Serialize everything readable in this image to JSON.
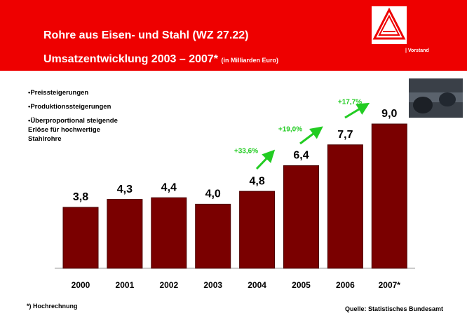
{
  "chart_data": {
    "type": "bar",
    "title": "Rohre aus Eisen- und Stahl (WZ 27.22)",
    "subtitle": "Umsatzentwicklung 2003 – 2007*",
    "unit_note": "(in Milliarden Euro)",
    "brand": "| Vorstand",
    "bullets": [
      "•Preissteigerungen",
      "•Produktionssteigerungen",
      "•Überproportional steigende Erlöse für hochwertige Stahlrohre"
    ],
    "categories": [
      "2000",
      "2001",
      "2002",
      "2003",
      "2004",
      "2005",
      "2006",
      "2007*"
    ],
    "values": [
      3.8,
      4.3,
      4.4,
      4.0,
      4.8,
      6.4,
      7.7,
      9.0
    ],
    "value_labels": [
      "3,8",
      "4,3",
      "4,4",
      "4,0",
      "4,8",
      "6,4",
      "7,7",
      "9,0"
    ],
    "color": "#7a0000",
    "annotations": [
      "+33,6%",
      "+19,0%",
      "+17,7%"
    ],
    "annotation_color": "#22cc22",
    "footnote": "*) Hochrechnung",
    "source": "Quelle: Statistisches Bundesamt"
  }
}
